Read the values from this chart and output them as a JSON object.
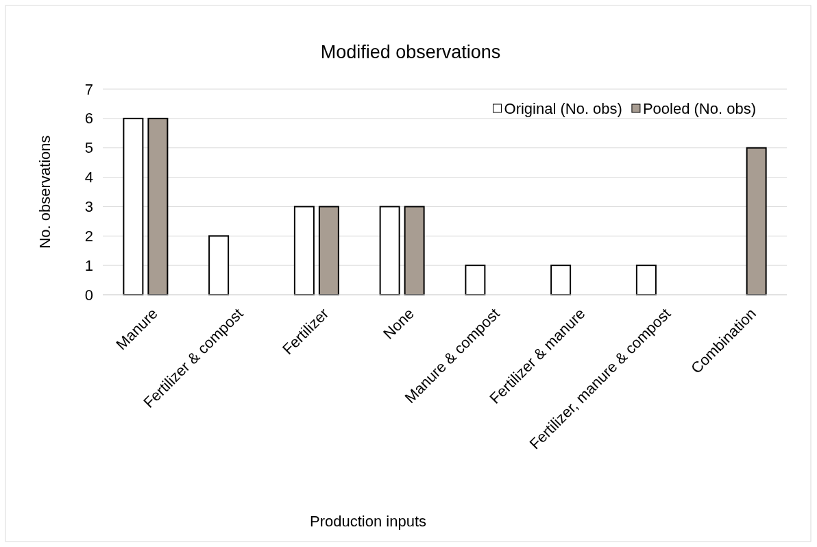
{
  "chart_data": {
    "type": "bar",
    "title": "Modified observations",
    "xlabel": "Production inputs",
    "ylabel": "No. observations",
    "categories": [
      "Manure",
      "Fertilizer & compost",
      "Fertilizer",
      "None",
      "Manure & compost",
      "Fertilizer & manure",
      "Fertilizer, manure & compost",
      "Combination"
    ],
    "series": [
      {
        "name": "Original (No. obs)",
        "color": "#ffffff",
        "values": [
          6,
          2,
          3,
          3,
          1,
          1,
          1,
          null
        ]
      },
      {
        "name": "Pooled (No. obs)",
        "color": "#a89d92",
        "values": [
          6,
          null,
          3,
          3,
          null,
          null,
          null,
          5
        ]
      }
    ],
    "ylim": [
      0,
      7
    ],
    "yticks": [
      0,
      1,
      2,
      3,
      4,
      5,
      6,
      7
    ],
    "grid": "y",
    "legend": "top right"
  }
}
